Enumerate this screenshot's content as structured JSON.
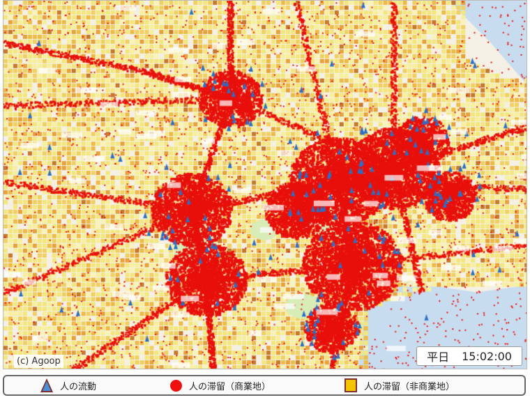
{
  "map": {
    "copyright": "(c) Agoop",
    "day_type": "平日",
    "time": "15:02:00"
  },
  "legend": {
    "items": [
      {
        "label": "人の流動",
        "icon": "blue-triangle",
        "color": "#4a90d9"
      },
      {
        "label": "人の滞留（商業地）",
        "icon": "red-circle",
        "color": "#f01010"
      },
      {
        "label": "人の滞留（非商業地）",
        "icon": "yellow-square",
        "color": "#f5c400"
      }
    ]
  }
}
